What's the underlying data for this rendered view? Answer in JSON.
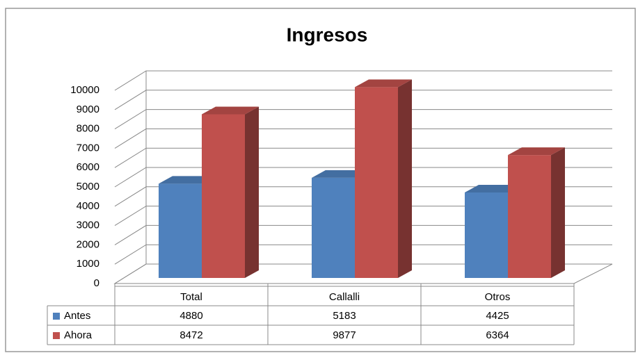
{
  "chart_data": {
    "type": "bar3d",
    "title": "Ingresos",
    "categories": [
      "Total",
      "Callalli",
      "Otros"
    ],
    "series": [
      {
        "name": "Antes",
        "color": "#4f81bd",
        "values": [
          4880,
          5183,
          4425
        ]
      },
      {
        "name": "Ahora",
        "color": "#c0504d",
        "values": [
          8472,
          9877,
          6364
        ]
      }
    ],
    "ylim": [
      0,
      10000
    ],
    "yticks": [
      0,
      1000,
      2000,
      3000,
      4000,
      5000,
      6000,
      7000,
      8000,
      9000,
      10000
    ],
    "grid": true,
    "legend": "table"
  }
}
